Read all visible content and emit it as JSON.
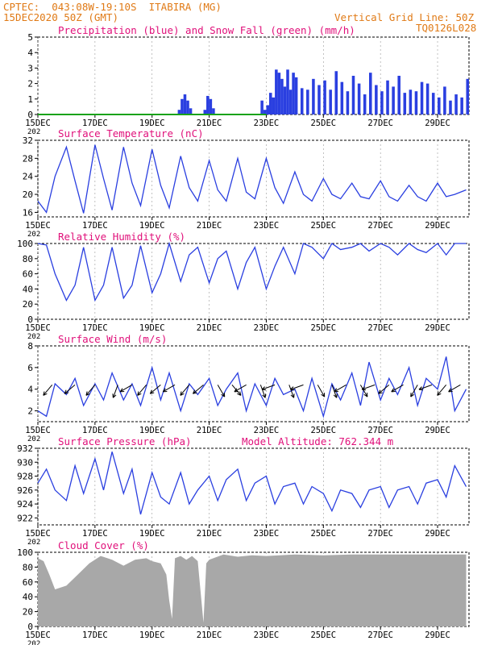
{
  "header": {
    "line1_left": "CPTEC:  043:08W-19:10S  ITABIRA (MG)",
    "line2_left": "15DEC2020 50Z (GMT)",
    "line2_right": "Vertical Grid Line: 50Z",
    "line3_right": "TQ0126L028"
  },
  "colors": {
    "header": "#e07a16",
    "title": "#e0107a",
    "series_blue": "#2a3fe0",
    "snow_green": "#1aa31a",
    "cloud_gray": "#a8a8a8",
    "arrow": "#000000"
  },
  "x_axis": {
    "tick_labels": [
      "15DEC",
      "17DEC",
      "19DEC",
      "21DEC",
      "23DEC",
      "25DEC",
      "27DEC",
      "29DEC"
    ],
    "tick_days": [
      15,
      17,
      19,
      21,
      23,
      25,
      27,
      29
    ],
    "start_day": 15,
    "end_day": 30.1,
    "year_label_fragment": "202"
  },
  "chart_data": [
    {
      "type": "bar",
      "title": "Precipitation (blue) and Snow Fall (green) (mm/h)",
      "ylim": [
        0,
        5
      ],
      "yticks": [
        0,
        1,
        2,
        3,
        4,
        5
      ],
      "grid": "dashed horizontal",
      "series": [
        {
          "name": "Precipitation",
          "color": "blue",
          "x": [
            19.9,
            20.0,
            20.1,
            20.2,
            20.3,
            20.8,
            20.9,
            21.0,
            21.1,
            22.8,
            22.9,
            23.0,
            23.1,
            23.2,
            23.3,
            23.4,
            23.5,
            23.6,
            23.7,
            23.8,
            23.9,
            24.0,
            24.2,
            24.4,
            24.6,
            24.8,
            25.0,
            25.2,
            25.4,
            25.6,
            25.8,
            26.0,
            26.2,
            26.4,
            26.6,
            26.8,
            27.0,
            27.2,
            27.4,
            27.6,
            27.8,
            28.0,
            28.2,
            28.4,
            28.6,
            28.8,
            29.0,
            29.2,
            29.4,
            29.6,
            29.8,
            30.0
          ],
          "values": [
            0.3,
            1.0,
            1.3,
            0.9,
            0.4,
            0.3,
            1.2,
            1.0,
            0.4,
            0.9,
            0.3,
            0.6,
            1.4,
            1.1,
            2.9,
            2.7,
            2.3,
            1.8,
            2.9,
            1.6,
            2.7,
            2.4,
            1.7,
            1.6,
            2.3,
            1.9,
            2.2,
            1.6,
            2.8,
            2.1,
            1.5,
            2.5,
            2.0,
            1.3,
            2.7,
            1.9,
            1.5,
            2.2,
            1.8,
            2.5,
            1.4,
            1.6,
            1.5,
            2.1,
            2.0,
            1.4,
            1.1,
            1.8,
            0.9,
            1.3,
            1.1,
            2.3
          ]
        },
        {
          "name": "Snow Fall",
          "color": "green",
          "x": [
            15.0,
            23.0
          ],
          "values": [
            0,
            0
          ]
        }
      ]
    },
    {
      "type": "line",
      "title": "Surface Temperature (nC)",
      "ylim": [
        15,
        32
      ],
      "yticks": [
        16,
        20,
        24,
        28,
        32
      ],
      "x": [
        15.0,
        15.3,
        15.6,
        16.0,
        16.3,
        16.6,
        17.0,
        17.3,
        17.6,
        18.0,
        18.3,
        18.6,
        19.0,
        19.3,
        19.6,
        20.0,
        20.3,
        20.6,
        21.0,
        21.3,
        21.6,
        22.0,
        22.3,
        22.6,
        23.0,
        23.3,
        23.6,
        24.0,
        24.3,
        24.6,
        25.0,
        25.3,
        25.6,
        26.0,
        26.3,
        26.6,
        27.0,
        27.3,
        27.6,
        28.0,
        28.3,
        28.6,
        29.0,
        29.3,
        29.6,
        30.0
      ],
      "values": [
        18.5,
        16.0,
        24.0,
        30.5,
        23.0,
        15.8,
        31.0,
        23.5,
        16.5,
        30.5,
        22.5,
        17.5,
        30.0,
        22.0,
        17.0,
        28.5,
        21.5,
        18.5,
        27.5,
        21.0,
        18.5,
        28.0,
        20.5,
        19.0,
        28.0,
        21.5,
        18.0,
        25.0,
        20.0,
        18.5,
        23.5,
        20.0,
        19.0,
        22.5,
        19.5,
        19.0,
        23.0,
        19.5,
        18.5,
        22.0,
        19.5,
        18.5,
        22.5,
        19.5,
        20.0,
        21.0
      ]
    },
    {
      "type": "line",
      "title": "Relative Humidity (%)",
      "ylim": [
        0,
        100
      ],
      "yticks": [
        0,
        20,
        40,
        60,
        80,
        100
      ],
      "x": [
        15.0,
        15.3,
        15.6,
        16.0,
        16.3,
        16.6,
        17.0,
        17.3,
        17.6,
        18.0,
        18.3,
        18.6,
        19.0,
        19.3,
        19.6,
        20.0,
        20.3,
        20.6,
        21.0,
        21.3,
        21.6,
        22.0,
        22.3,
        22.6,
        23.0,
        23.3,
        23.6,
        24.0,
        24.3,
        24.6,
        25.0,
        25.3,
        25.6,
        26.0,
        26.3,
        26.6,
        27.0,
        27.3,
        27.6,
        28.0,
        28.3,
        28.6,
        29.0,
        29.3,
        29.6,
        30.0
      ],
      "values": [
        100,
        98,
        60,
        25,
        45,
        95,
        25,
        45,
        95,
        28,
        45,
        97,
        35,
        60,
        100,
        50,
        85,
        95,
        48,
        80,
        90,
        40,
        75,
        95,
        40,
        70,
        95,
        60,
        100,
        95,
        80,
        100,
        92,
        95,
        100,
        90,
        100,
        95,
        85,
        100,
        92,
        88,
        100,
        85,
        100,
        100
      ]
    },
    {
      "type": "line",
      "title": "Surface Wind (m/s)",
      "ylim": [
        1,
        8
      ],
      "yticks": [
        2,
        4,
        6,
        8
      ],
      "x": [
        15.0,
        15.3,
        15.6,
        16.0,
        16.3,
        16.6,
        17.0,
        17.3,
        17.6,
        18.0,
        18.3,
        18.6,
        19.0,
        19.3,
        19.6,
        20.0,
        20.3,
        20.6,
        21.0,
        21.3,
        21.6,
        22.0,
        22.3,
        22.6,
        23.0,
        23.3,
        23.6,
        24.0,
        24.3,
        24.6,
        25.0,
        25.3,
        25.6,
        26.0,
        26.3,
        26.6,
        27.0,
        27.3,
        27.6,
        28.0,
        28.3,
        28.6,
        29.0,
        29.3,
        29.6,
        30.0
      ],
      "values": [
        2.0,
        1.5,
        4.5,
        3.5,
        5.0,
        2.5,
        4.5,
        3.0,
        5.5,
        3.0,
        4.5,
        2.5,
        6.0,
        3.0,
        5.5,
        2.0,
        4.5,
        3.5,
        5.0,
        2.5,
        4.0,
        5.5,
        2.0,
        4.5,
        2.5,
        5.0,
        3.5,
        4.0,
        2.0,
        5.0,
        1.5,
        4.5,
        3.0,
        5.5,
        2.5,
        6.5,
        3.0,
        5.0,
        3.5,
        6.0,
        2.5,
        5.0,
        4.0,
        7.0,
        2.0,
        4.0
      ],
      "arrows_x": [
        15.5,
        16.3,
        17.0,
        17.8,
        18.3,
        18.8,
        19.3,
        19.8,
        20.3,
        20.8,
        21.3,
        21.8,
        22.3,
        22.8,
        23.3,
        23.8,
        24.3,
        24.8,
        25.3,
        25.8,
        26.3,
        26.8,
        27.3,
        27.8,
        28.3,
        28.8,
        29.3,
        29.8
      ],
      "arrows_dir": [
        230,
        220,
        230,
        250,
        210,
        230,
        220,
        210,
        230,
        220,
        300,
        310,
        210,
        290,
        200,
        290,
        200,
        300,
        290,
        210,
        300,
        200,
        220,
        210,
        240,
        200,
        230,
        210
      ]
    },
    {
      "type": "line",
      "title": "Surface Pressure (hPa)",
      "annotation": "Model Altitude: 762.344 m",
      "ylim": [
        921,
        932
      ],
      "yticks": [
        922,
        924,
        926,
        928,
        930,
        932
      ],
      "x": [
        15.0,
        15.3,
        15.6,
        16.0,
        16.3,
        16.6,
        17.0,
        17.3,
        17.6,
        18.0,
        18.3,
        18.6,
        19.0,
        19.3,
        19.6,
        20.0,
        20.3,
        20.6,
        21.0,
        21.3,
        21.6,
        22.0,
        22.3,
        22.6,
        23.0,
        23.3,
        23.6,
        24.0,
        24.3,
        24.6,
        25.0,
        25.3,
        25.6,
        26.0,
        26.3,
        26.6,
        27.0,
        27.3,
        27.6,
        28.0,
        28.3,
        28.6,
        29.0,
        29.3,
        29.6,
        30.0
      ],
      "values": [
        927.0,
        929.0,
        926.0,
        924.5,
        929.5,
        925.5,
        930.5,
        926.0,
        931.5,
        925.5,
        929.0,
        922.5,
        928.5,
        925.0,
        924.0,
        928.5,
        924.0,
        926.0,
        928.0,
        924.5,
        927.5,
        929.0,
        924.5,
        927.0,
        928.0,
        924.0,
        926.5,
        927.0,
        924.0,
        926.5,
        925.5,
        923.0,
        926.0,
        925.5,
        923.5,
        926.0,
        926.5,
        923.5,
        926.0,
        926.5,
        924.0,
        927.0,
        927.5,
        925.0,
        929.5,
        926.5
      ]
    },
    {
      "type": "area",
      "title": "Cloud Cover (%)",
      "ylim": [
        0,
        100
      ],
      "yticks": [
        0,
        20,
        40,
        60,
        80,
        100
      ],
      "x": [
        15.0,
        15.2,
        15.4,
        15.6,
        16.0,
        16.4,
        16.8,
        17.2,
        17.6,
        18.0,
        18.4,
        18.8,
        19.0,
        19.3,
        19.5,
        19.6,
        19.7,
        19.8,
        20.0,
        20.2,
        20.4,
        20.6,
        20.8,
        20.9,
        21.0,
        21.5,
        22.0,
        22.5,
        23.0,
        24.0,
        25.0,
        26.0,
        27.0,
        28.0,
        29.0,
        30.0
      ],
      "values": [
        92,
        88,
        70,
        50,
        55,
        70,
        85,
        95,
        90,
        82,
        90,
        92,
        88,
        85,
        70,
        35,
        10,
        92,
        95,
        90,
        95,
        88,
        5,
        85,
        90,
        97,
        94,
        96,
        95,
        97,
        96,
        97,
        97,
        97,
        97,
        97
      ]
    }
  ]
}
